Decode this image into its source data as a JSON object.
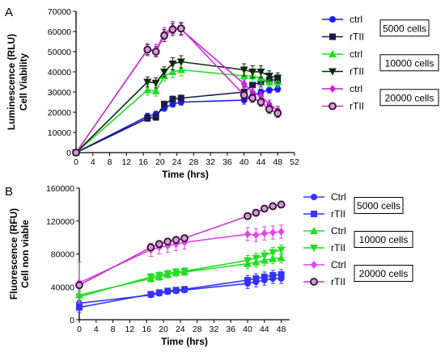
{
  "chart_data": [
    {
      "type": "line",
      "panel_label": "A",
      "title": "",
      "xlabel": "Time (hrs)",
      "ylabel": [
        "Luminescence (RLU)",
        "Cell Viability"
      ],
      "xlim": [
        0,
        52
      ],
      "ylim": [
        0,
        70000
      ],
      "x_ticks": [
        0,
        4,
        8,
        12,
        16,
        20,
        24,
        28,
        32,
        36,
        40,
        44,
        48,
        52
      ],
      "y_ticks": [
        0,
        10000,
        20000,
        30000,
        40000,
        50000,
        60000,
        70000
      ],
      "grid": false,
      "legend_position": "right",
      "series": [
        {
          "name": "ctrl",
          "group": "5000 cells",
          "color": "#1a1aff",
          "marker": "circle",
          "x": [
            0,
            17,
            19,
            21,
            23,
            25,
            40,
            42,
            44,
            46,
            48
          ],
          "y": [
            0,
            18000,
            19000,
            22000,
            24000,
            25000,
            26000,
            28000,
            30000,
            31000,
            31500
          ],
          "err": [
            0,
            1500,
            1500,
            1500,
            1500,
            1500,
            2000,
            1500,
            1500,
            1500,
            1500
          ]
        },
        {
          "name": "rTII",
          "group": "5000 cells",
          "color": "#1a1a4d",
          "marker": "square",
          "x": [
            0,
            17,
            19,
            21,
            23,
            25,
            40,
            42,
            44,
            46,
            48
          ],
          "y": [
            0,
            17000,
            17500,
            24000,
            26500,
            27000,
            30000,
            33500,
            35000,
            36000,
            36000
          ],
          "err": [
            0,
            1500,
            1500,
            1500,
            1500,
            1500,
            2500,
            3000,
            2500,
            2500,
            2500
          ]
        },
        {
          "name": "ctrl",
          "group": "10000 cells",
          "color": "#22dd22",
          "marker": "triangle-up",
          "x": [
            0,
            17,
            19,
            21,
            23,
            25,
            40,
            42,
            44,
            46,
            48
          ],
          "y": [
            0,
            31000,
            30500,
            38000,
            40000,
            41000,
            38000,
            38000,
            37000,
            35000,
            35000
          ],
          "err": [
            0,
            2500,
            2500,
            2500,
            3000,
            3000,
            3000,
            3000,
            3000,
            2500,
            2500
          ]
        },
        {
          "name": "rTII",
          "group": "10000 cells",
          "color": "#0a2a0a",
          "marker": "triangle-down",
          "x": [
            0,
            17,
            19,
            21,
            23,
            25,
            40,
            42,
            44,
            46,
            48
          ],
          "y": [
            0,
            35000,
            34500,
            40000,
            44000,
            45000,
            41000,
            40000,
            40000,
            38000,
            37000
          ],
          "err": [
            0,
            2500,
            2500,
            2500,
            3000,
            3000,
            3000,
            3000,
            3000,
            2500,
            2500
          ]
        },
        {
          "name": "ctrl",
          "group": "20000 cells",
          "color": "#cc22dd",
          "marker": "diamond",
          "x": [
            0,
            17,
            19,
            21,
            23,
            25,
            40,
            42,
            44,
            46,
            48
          ],
          "y": [
            0,
            51000,
            50500,
            59000,
            62000,
            61000,
            34000,
            30000,
            28000,
            24000,
            21000
          ],
          "err": [
            0,
            3000,
            3000,
            3000,
            3000,
            3000,
            2000,
            2000,
            2000,
            2000,
            2000
          ]
        },
        {
          "name": "rTII",
          "group": "20000 cells",
          "color": "#5a0a5a",
          "marker": "circle-open",
          "x": [
            0,
            17,
            19,
            21,
            23,
            25,
            40,
            42,
            44,
            46,
            48
          ],
          "y": [
            0,
            51000,
            50000,
            58000,
            61000,
            61500,
            28500,
            27000,
            25000,
            21500,
            19500
          ],
          "err": [
            0,
            2500,
            2500,
            3000,
            3000,
            3000,
            2000,
            2000,
            2000,
            2000,
            2000
          ]
        }
      ],
      "legend_groups": [
        "5000 cells",
        "10000 cells",
        "20000 cells"
      ]
    },
    {
      "type": "line",
      "panel_label": "B",
      "title": "",
      "xlabel": "Time (hrs)",
      "ylabel": [
        "Fluorescence (RFU)",
        "Cell non viable"
      ],
      "xlim": [
        0,
        50
      ],
      "ylim": [
        0,
        160000
      ],
      "x_ticks": [
        0,
        4,
        8,
        12,
        16,
        20,
        24,
        28,
        32,
        36,
        40,
        44,
        48
      ],
      "y_ticks": [
        0,
        40000,
        80000,
        120000,
        160000
      ],
      "grid": false,
      "legend_position": "right",
      "series": [
        {
          "name": "Ctrl",
          "group": "5000 cells",
          "color": "#3333ff",
          "marker": "circle",
          "x": [
            0,
            17,
            19,
            21,
            23,
            25,
            40,
            42,
            44,
            46,
            48
          ],
          "y": [
            20000,
            30000,
            32000,
            34000,
            35000,
            36000,
            44000,
            46000,
            48000,
            50000,
            50000
          ],
          "err": [
            8000,
            3000,
            3000,
            3000,
            3000,
            3000,
            6000,
            6000,
            6000,
            6000,
            6000
          ]
        },
        {
          "name": "rTII",
          "group": "5000 cells",
          "color": "#3333ff",
          "marker": "square",
          "x": [
            0,
            17,
            19,
            21,
            23,
            25,
            40,
            42,
            44,
            46,
            48
          ],
          "y": [
            15000,
            31000,
            33000,
            35000,
            36000,
            37000,
            48000,
            50000,
            52000,
            54000,
            55000
          ],
          "err": [
            6000,
            3000,
            3000,
            3000,
            3000,
            3000,
            6000,
            6000,
            6000,
            6000,
            6000
          ]
        },
        {
          "name": "Ctrl",
          "group": "10000 cells",
          "color": "#22dd22",
          "marker": "triangle-up",
          "x": [
            0,
            17,
            19,
            21,
            23,
            25,
            40,
            42,
            44,
            46,
            48
          ],
          "y": [
            30000,
            50000,
            52000,
            55000,
            57000,
            58000,
            68000,
            70000,
            72000,
            74000,
            75000
          ],
          "err": [
            6000,
            4000,
            4000,
            4000,
            4000,
            4000,
            6000,
            6000,
            6000,
            6000,
            6000
          ]
        },
        {
          "name": "rTII",
          "group": "10000 cells",
          "color": "#22dd22",
          "marker": "triangle-down",
          "x": [
            0,
            17,
            19,
            21,
            23,
            25,
            40,
            42,
            44,
            46,
            48
          ],
          "y": [
            28000,
            52000,
            54000,
            56000,
            58000,
            59000,
            72000,
            75000,
            78000,
            82000,
            85000
          ],
          "err": [
            6000,
            4000,
            4000,
            4000,
            4000,
            4000,
            6000,
            6000,
            6000,
            6000,
            6000
          ]
        },
        {
          "name": "Ctrl",
          "group": "20000 cells",
          "color": "#dd44ee",
          "marker": "diamond",
          "x": [
            0,
            17,
            19,
            21,
            23,
            25,
            40,
            42,
            44,
            46,
            48
          ],
          "y": [
            45000,
            85000,
            88000,
            90000,
            92000,
            94000,
            104000,
            103000,
            105000,
            106000,
            107000
          ],
          "err": [
            25000,
            8000,
            8000,
            8000,
            8000,
            8000,
            8000,
            8000,
            8000,
            8000,
            8000
          ]
        },
        {
          "name": "rTII",
          "group": "20000 cells",
          "color": "#5a0a5a",
          "marker": "circle-open",
          "x": [
            0,
            17,
            19,
            21,
            23,
            25,
            40,
            42,
            44,
            46,
            48
          ],
          "y": [
            42000,
            88000,
            92000,
            95000,
            97000,
            99000,
            126000,
            130000,
            135000,
            138000,
            140000
          ],
          "err": [
            4000,
            4000,
            4000,
            4000,
            4000,
            4000,
            4000,
            4000,
            4000,
            4000,
            4000
          ]
        }
      ],
      "legend_groups": [
        "5000 cells",
        "10000 cells",
        "20000 cells"
      ]
    }
  ]
}
